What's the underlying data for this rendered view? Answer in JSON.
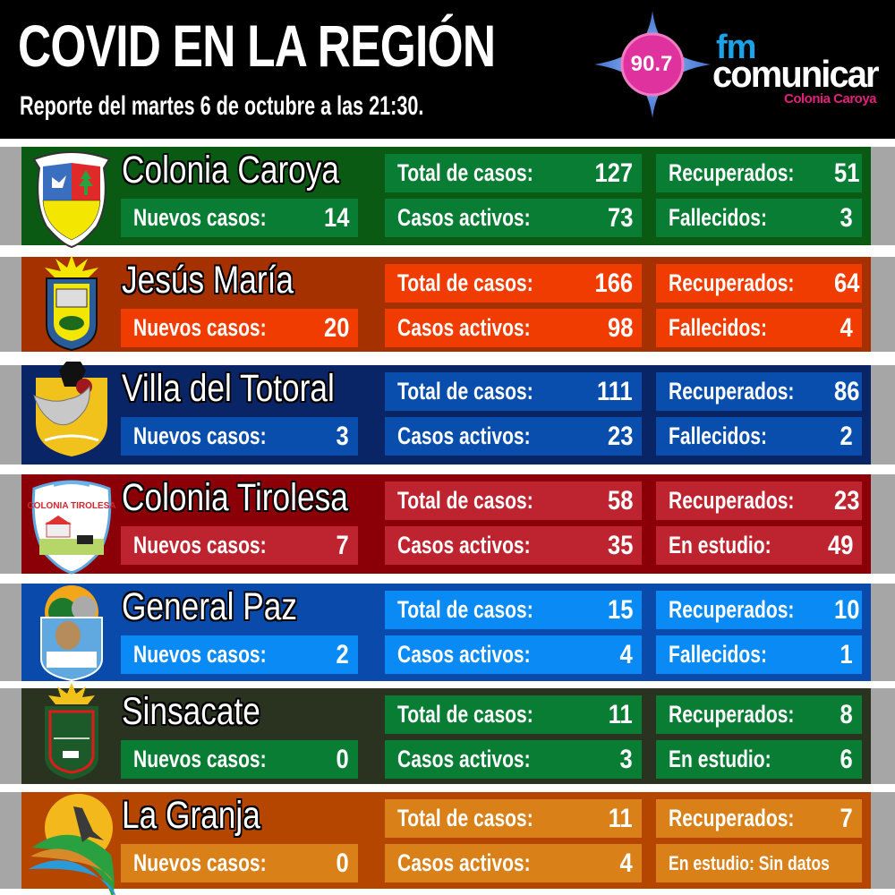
{
  "header": {
    "title": "COVID EN LA REGIÓN",
    "subtitle": "Reporte del martes 6 de octubre a las 21:30.",
    "logo": {
      "frequency": "90.7",
      "brand_top": "fm",
      "brand_main": "comunicar",
      "brand_city": "Colonia Caroya",
      "colors": {
        "star": "#4a7fd8",
        "circle": "#e0329f",
        "fm": "#1aa3e8",
        "city": "#e3207c"
      }
    }
  },
  "labels": {
    "new": "Nuevos casos:",
    "total": "Total de casos:",
    "active": "Casos activos:",
    "recovered": "Recuperados:",
    "deaths": "Fallecidos:",
    "study": "En estudio:"
  },
  "towns": [
    {
      "name": "Colonia Caroya",
      "crest": "colonia-caroya-crest",
      "new": "14",
      "total": "127",
      "active": "73",
      "recovered": "51",
      "side_label": "Fallecidos:",
      "side_value": "3",
      "bg": "#0b5a14",
      "box": "#0a7d35"
    },
    {
      "name": "Jesús María",
      "crest": "jesus-maria-crest",
      "new": "20",
      "total": "166",
      "active": "98",
      "recovered": "64",
      "side_label": "Fallecidos:",
      "side_value": "4",
      "bg": "#a53000",
      "box": "#f03c00"
    },
    {
      "name": "Villa del Totoral",
      "crest": "villa-del-totoral-crest",
      "new": "3",
      "total": "111",
      "active": "23",
      "recovered": "86",
      "side_label": "Fallecidos:",
      "side_value": "2",
      "bg": "#0a2566",
      "box": "#0a4ead"
    },
    {
      "name": "Colonia Tirolesa",
      "crest": "colonia-tirolesa-crest",
      "new": "7",
      "total": "58",
      "active": "35",
      "recovered": "23",
      "side_label": "En estudio:",
      "side_value": "49",
      "bg": "#8b0006",
      "box": "#be2430"
    },
    {
      "name": "General Paz",
      "crest": "general-paz-crest",
      "new": "2",
      "total": "15",
      "active": "4",
      "recovered": "10",
      "side_label": "Fallecidos:",
      "side_value": "1",
      "bg": "#0a4aaa",
      "box": "#0a8af5"
    },
    {
      "name": "Sinsacate",
      "crest": "sinsacate-crest",
      "new": "0",
      "total": "11",
      "active": "3",
      "recovered": "8",
      "side_label": "En estudio:",
      "side_value": "6",
      "bg": "#2a3320",
      "box": "#0a7d35"
    },
    {
      "name": "La Granja",
      "crest": "la-granja-crest",
      "new": "0",
      "total": "11",
      "active": "4",
      "recovered": "7",
      "side_label": "En estudio: Sin datos",
      "side_value": "",
      "bg": "#b54600",
      "box": "#d98018"
    }
  ]
}
